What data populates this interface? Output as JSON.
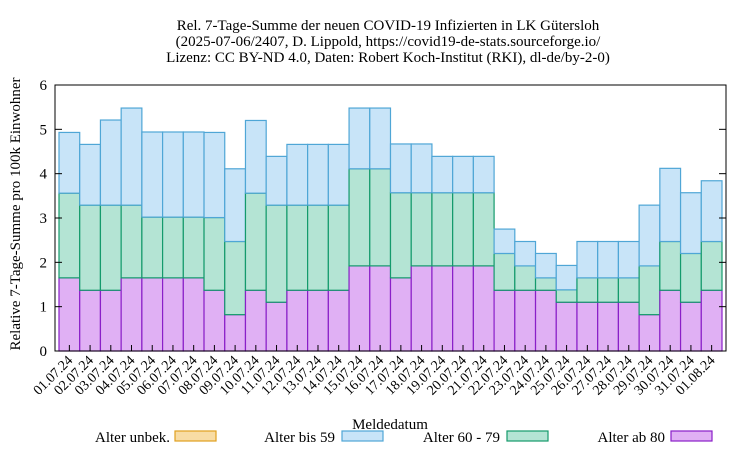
{
  "chart_data": {
    "type": "bar",
    "stacked": true,
    "title_lines": [
      "Rel. 7-Tage-Summe der neuen COVID-19 Infizierten in LK Gütersloh",
      "(2025-07-06/2407, D. Lippold, https://covid19-de-stats.sourceforge.io/",
      "Lizenz: CC BY-ND 4.0, Daten: Robert Koch-Institut (RKI), dl-de/by-2-0)"
    ],
    "xlabel": "Meldedatum",
    "ylabel": "Relative 7-Tage-Summe pro 100k Einwohner",
    "ylim": [
      0,
      6
    ],
    "yticks": [
      0,
      1,
      2,
      3,
      4,
      5,
      6
    ],
    "grid": false,
    "legend_position": "bottom",
    "categories": [
      "01.07.24",
      "02.07.24",
      "03.07.24",
      "04.07.24",
      "05.07.24",
      "06.07.24",
      "07.07.24",
      "08.07.24",
      "09.07.24",
      "10.07.24",
      "11.07.24",
      "12.07.24",
      "13.07.24",
      "14.07.24",
      "15.07.24",
      "16.07.24",
      "17.07.24",
      "18.07.24",
      "19.07.24",
      "20.07.24",
      "21.07.24",
      "22.07.24",
      "23.07.24",
      "24.07.24",
      "25.07.24",
      "26.07.24",
      "27.07.24",
      "28.07.24",
      "29.07.24",
      "30.07.24",
      "31.07.24",
      "01.08.24"
    ],
    "series": [
      {
        "name": "Alter ab 80",
        "fill": "#e0b0f4",
        "stroke": "#8a1fc8",
        "values": [
          1.65,
          1.37,
          1.37,
          1.65,
          1.65,
          1.65,
          1.65,
          1.37,
          0.82,
          1.37,
          1.1,
          1.37,
          1.37,
          1.37,
          1.92,
          1.92,
          1.65,
          1.92,
          1.92,
          1.92,
          1.92,
          1.37,
          1.37,
          1.37,
          1.1,
          1.1,
          1.1,
          1.1,
          0.82,
          1.37,
          1.1,
          1.37
        ]
      },
      {
        "name": "Alter 60 - 79",
        "fill": "#b4e4d4",
        "stroke": "#149a6c",
        "values": [
          1.91,
          1.92,
          1.92,
          1.64,
          1.37,
          1.37,
          1.37,
          1.64,
          1.65,
          2.19,
          2.19,
          1.92,
          1.92,
          1.92,
          2.19,
          2.19,
          1.92,
          1.65,
          1.65,
          1.65,
          1.65,
          0.83,
          0.55,
          0.28,
          0.28,
          0.55,
          0.55,
          0.55,
          1.1,
          1.1,
          1.1,
          1.1
        ]
      },
      {
        "name": "Alter bis 59",
        "fill": "#c8e4f8",
        "stroke": "#4fa6d6",
        "values": [
          1.37,
          1.37,
          1.92,
          2.19,
          1.92,
          1.92,
          1.92,
          1.92,
          1.64,
          1.64,
          1.1,
          1.37,
          1.37,
          1.37,
          1.37,
          1.37,
          1.1,
          1.1,
          0.82,
          0.82,
          0.82,
          0.55,
          0.55,
          0.55,
          0.55,
          0.82,
          0.82,
          0.82,
          1.37,
          1.65,
          1.37,
          1.37
        ]
      },
      {
        "name": "Alter unbek.",
        "fill": "#f8dca4",
        "stroke": "#e0a020",
        "values": [
          0,
          0,
          0,
          0,
          0,
          0,
          0,
          0,
          0,
          0,
          0,
          0,
          0,
          0,
          0,
          0,
          0,
          0,
          0,
          0,
          0,
          0,
          0,
          0,
          0,
          0,
          0,
          0,
          0,
          0,
          0,
          0
        ]
      }
    ],
    "legend_order": [
      "Alter unbek.",
      "Alter bis 59",
      "Alter 60 - 79",
      "Alter ab 80"
    ]
  }
}
